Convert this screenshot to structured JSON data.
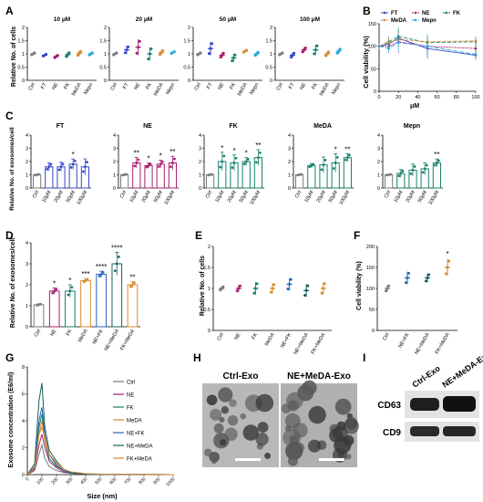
{
  "colors": {
    "ctrl": "#7a7a7a",
    "ft": "#3347c8",
    "ne": "#a51c6e",
    "fk": "#15806b",
    "meda": "#d98a2e",
    "mepn": "#2aa6dd",
    "nefk": "#2566b8",
    "nemeda": "#14605c",
    "fkmeda": "#d98a2e",
    "star": "#000000"
  },
  "panels": {
    "A": "A",
    "B": "B",
    "C": "C",
    "D": "D",
    "E": "E",
    "F": "F",
    "G": "G",
    "H": "H",
    "I": "I"
  },
  "panelA": {
    "ylabel": "Relative No. of cells",
    "categories": [
      "Ctrl",
      "FT",
      "NE",
      "FK",
      "MeDA",
      "Mepn"
    ],
    "subtitles": [
      "10 μM",
      "20 μM",
      "50 μM",
      "100 μM"
    ]
  },
  "panelB": {
    "ylabel": "Cell viability (%)",
    "xlabel": "μM",
    "legend": [
      "FT",
      "NE",
      "FK",
      "MeDA",
      "Mepn"
    ]
  },
  "panelC": {
    "ylabel": "Relative No. of exosomes/cell",
    "titles": [
      "FT",
      "NE",
      "FK",
      "MeDA",
      "Mepn"
    ],
    "categories": [
      "Ctrl",
      "10μM",
      "20μM",
      "50μM",
      "100μM"
    ]
  },
  "panelD": {
    "ylabel": "Relative No. of exosomes/cell",
    "categories": [
      "Ctrl",
      "NE",
      "FK",
      "MeDA",
      "NE+FK",
      "NE+MeDA",
      "FK+MeDA"
    ]
  },
  "panelE": {
    "ylabel": "Relative No. of cells",
    "categories": [
      "Ctrl",
      "NE",
      "FK",
      "MeDA",
      "NE+FK",
      "NE+MeDA",
      "FK+MeDA"
    ]
  },
  "panelF": {
    "ylabel": "Cell viability (%)",
    "categories": [
      "Ctrl",
      "NE+FK",
      "NE+MeDA",
      "FK+MeDA"
    ]
  },
  "panelG": {
    "ylabel": "Exosome concentration (E6/ml)",
    "xlabel": "Size (nm)",
    "legend": [
      "Ctrl",
      "NE",
      "FK",
      "MeDA",
      "NE+FK",
      "NE+MeDA",
      "FK+MeDA"
    ]
  },
  "panelH": {
    "left_label": "Ctrl-Exo",
    "right_label": "NE+MeDA-Exo"
  },
  "panelI": {
    "col_labels": [
      "Ctrl-Exo",
      "NE+MeDA-Exo"
    ],
    "row_labels": [
      "CD63",
      "CD9"
    ]
  },
  "chart_data": [
    {
      "id": "A",
      "type": "scatter",
      "title": "",
      "subplots": [
        {
          "subtitle": "10 μM",
          "categories": [
            "Ctrl",
            "FT",
            "NE",
            "FK",
            "MeDA",
            "Mepn"
          ],
          "means": [
            1.0,
            0.95,
            0.9,
            0.97,
            1.02,
            1.0
          ],
          "sd": [
            0.05,
            0.05,
            0.06,
            0.1,
            0.1,
            0.06
          ],
          "ylim": [
            0,
            2.0
          ],
          "yticks": [
            0,
            0.5,
            1.0,
            1.5,
            2.0
          ]
        },
        {
          "subtitle": "20 μM",
          "categories": [
            "Ctrl",
            "FT",
            "NE",
            "FK",
            "MeDA",
            "Mepn"
          ],
          "means": [
            1.0,
            1.15,
            1.25,
            1.0,
            1.05,
            1.05
          ],
          "sd": [
            0.05,
            0.15,
            0.3,
            0.25,
            0.1,
            0.05
          ],
          "ylim": [
            0,
            2.0
          ],
          "yticks": [
            0,
            0.5,
            1.0,
            1.5,
            2.0
          ]
        },
        {
          "subtitle": "50 μM",
          "categories": [
            "Ctrl",
            "FT",
            "NE",
            "FK",
            "MeDA",
            "Mepn"
          ],
          "means": [
            1.0,
            1.2,
            0.95,
            0.85,
            1.1,
            1.0
          ],
          "sd": [
            0.05,
            0.25,
            0.1,
            0.15,
            0.05,
            0.08
          ],
          "ylim": [
            0,
            2.0
          ],
          "yticks": [
            0,
            0.5,
            1.0,
            1.5,
            2.0
          ]
        },
        {
          "subtitle": "100 μM",
          "categories": [
            "Ctrl",
            "FT",
            "NE",
            "FK",
            "MeDA",
            "Mepn"
          ],
          "means": [
            1.0,
            0.95,
            1.15,
            1.15,
            1.0,
            1.1
          ],
          "sd": [
            0.05,
            0.1,
            0.1,
            0.2,
            0.1,
            0.1
          ],
          "ylim": [
            0,
            2.0
          ],
          "yticks": [
            0,
            0.5,
            1.0,
            1.5,
            2.0
          ]
        }
      ]
    },
    {
      "id": "B",
      "type": "line",
      "xlabel": "μM",
      "ylabel": "Cell viability (%)",
      "x": [
        0,
        10,
        20,
        50,
        100
      ],
      "xlim": [
        0,
        100
      ],
      "ylim": [
        0,
        150
      ],
      "xticks": [
        0,
        20,
        40,
        60,
        80,
        100
      ],
      "yticks": [
        0,
        50,
        100,
        150
      ],
      "legend_position": "top",
      "series": [
        {
          "name": "FT",
          "values": [
            100,
            105,
            118,
            95,
            80
          ],
          "sd": [
            8,
            10,
            20,
            22,
            10
          ]
        },
        {
          "name": "NE",
          "values": [
            100,
            100,
            110,
            100,
            95
          ],
          "sd": [
            6,
            12,
            25,
            20,
            12
          ]
        },
        {
          "name": "FK",
          "values": [
            100,
            110,
            122,
            108,
            110
          ],
          "sd": [
            5,
            12,
            20,
            18,
            12
          ]
        },
        {
          "name": "MeDA",
          "values": [
            100,
            108,
            115,
            110,
            112
          ],
          "sd": [
            6,
            10,
            15,
            15,
            10
          ]
        },
        {
          "name": "Mepn",
          "values": [
            100,
            95,
            108,
            100,
            82
          ],
          "sd": [
            5,
            10,
            20,
            25,
            10
          ]
        }
      ]
    },
    {
      "id": "C",
      "type": "bar",
      "ylabel": "Relative No. of exosomes/cell",
      "subplots": [
        {
          "title": "FT",
          "categories": [
            "Ctrl",
            "10μM",
            "20μM",
            "50μM",
            "100μM"
          ],
          "values": [
            1.0,
            1.6,
            1.6,
            1.8,
            1.6
          ],
          "sd": [
            0.05,
            0.3,
            0.35,
            0.4,
            0.6
          ],
          "sig": [
            "",
            "",
            "",
            "*",
            ""
          ],
          "ylim": [
            0,
            4
          ],
          "yticks": [
            0,
            1,
            2,
            3,
            4
          ]
        },
        {
          "title": "NE",
          "categories": [
            "Ctrl",
            "10μM",
            "20μM",
            "50μM",
            "100μM"
          ],
          "values": [
            1.0,
            1.9,
            1.7,
            1.8,
            1.9
          ],
          "sd": [
            0.05,
            0.4,
            0.2,
            0.3,
            0.5
          ],
          "sig": [
            "",
            "**",
            "*",
            "*",
            "**"
          ],
          "ylim": [
            0,
            4
          ],
          "yticks": [
            0,
            1,
            2,
            3,
            4
          ]
        },
        {
          "title": "FK",
          "categories": [
            "Ctrl",
            "10μM",
            "20μM",
            "50μM",
            "100μM"
          ],
          "values": [
            1.0,
            2.0,
            1.9,
            2.0,
            2.3
          ],
          "sd": [
            0.05,
            0.7,
            0.6,
            0.3,
            0.6
          ],
          "sig": [
            "",
            "*",
            "*",
            "*",
            "**"
          ],
          "ylim": [
            0,
            4
          ],
          "yticks": [
            0,
            1,
            2,
            3,
            4
          ]
        },
        {
          "title": "MeDA",
          "categories": [
            "Ctrl",
            "10μM",
            "20μM",
            "50μM",
            "100μM"
          ],
          "values": [
            1.0,
            1.7,
            1.75,
            1.9,
            2.3
          ],
          "sd": [
            0.05,
            0.15,
            0.6,
            0.7,
            0.3
          ],
          "sig": [
            "",
            "",
            "",
            "*",
            "**"
          ],
          "ylim": [
            0,
            4
          ],
          "yticks": [
            0,
            1,
            2,
            3,
            4
          ]
        },
        {
          "title": "Mepn",
          "categories": [
            "Ctrl",
            "10μM",
            "20μM",
            "50μM",
            "100μM"
          ],
          "values": [
            1.0,
            1.1,
            1.35,
            1.45,
            1.9
          ],
          "sd": [
            0.05,
            0.3,
            0.45,
            0.45,
            0.3
          ],
          "sig": [
            "",
            "",
            "",
            "",
            "**"
          ],
          "ylim": [
            0,
            4
          ],
          "yticks": [
            0,
            1,
            2,
            3,
            4
          ]
        }
      ]
    },
    {
      "id": "D",
      "type": "bar",
      "ylabel": "Relative No. of exosomes/cell",
      "categories": [
        "Ctrl",
        "NE",
        "FK",
        "MeDA",
        "NE+FK",
        "NE+MeDA",
        "FK+MeDA"
      ],
      "values": [
        1.05,
        1.7,
        1.7,
        2.2,
        2.5,
        3.0,
        2.0
      ],
      "sd": [
        0.05,
        0.15,
        0.3,
        0.1,
        0.15,
        0.55,
        0.15
      ],
      "sig": [
        "",
        "*",
        "*",
        "***",
        "****",
        "****",
        "**"
      ],
      "ylim": [
        0,
        4
      ],
      "yticks": [
        0,
        1,
        2,
        3,
        4
      ]
    },
    {
      "id": "E",
      "type": "scatter",
      "ylabel": "Relative No. of cells",
      "categories": [
        "Ctrl",
        "NE",
        "FK",
        "MeDA",
        "NE+FK",
        "NE+MeDA",
        "FK+MeDA"
      ],
      "means": [
        1.0,
        1.0,
        1.0,
        1.0,
        1.1,
        0.95,
        1.0
      ],
      "sd": [
        0.05,
        0.08,
        0.15,
        0.12,
        0.15,
        0.15,
        0.15
      ],
      "ylim": [
        0,
        2.0
      ],
      "yticks": [
        0,
        0.5,
        1.0,
        1.5,
        2.0
      ]
    },
    {
      "id": "F",
      "type": "scatter",
      "ylabel": "Cell viability (%)",
      "categories": [
        "Ctrl",
        "NE+FK",
        "NE+MeDA",
        "FK+MeDA"
      ],
      "means": [
        100,
        125,
        125,
        150
      ],
      "sd": [
        8,
        15,
        10,
        20
      ],
      "sig": [
        "",
        "",
        "",
        "*"
      ],
      "ylim": [
        0,
        200
      ],
      "yticks": [
        0,
        50,
        100,
        150,
        200
      ]
    },
    {
      "id": "G",
      "type": "line",
      "xlabel": "Size (nm)",
      "ylabel": "Exosome concentration (E6/ml)",
      "xlim": [
        0,
        1000
      ],
      "ylim": [
        0,
        8
      ],
      "xticks": [
        0,
        100,
        200,
        300,
        400,
        500,
        600,
        700,
        800,
        900,
        1000
      ],
      "yticks": [
        0,
        2,
        4,
        6,
        8
      ],
      "x": [
        0,
        50,
        80,
        100,
        120,
        150,
        200,
        250,
        300,
        400,
        500,
        1000
      ],
      "series": [
        {
          "name": "Ctrl",
          "values": [
            0,
            0.3,
            1.5,
            2.2,
            1.2,
            0.6,
            0.3,
            0.15,
            0.1,
            0.05,
            0.02,
            0
          ]
        },
        {
          "name": "NE",
          "values": [
            0,
            0.4,
            2.2,
            3.0,
            2.0,
            1.0,
            0.5,
            0.2,
            0.1,
            0.05,
            0.02,
            0
          ]
        },
        {
          "name": "FK",
          "values": [
            0,
            0.5,
            3.5,
            4.5,
            2.5,
            1.2,
            0.6,
            0.3,
            0.1,
            0.05,
            0.02,
            0
          ]
        },
        {
          "name": "MeDA",
          "values": [
            0,
            0.5,
            3.0,
            4.0,
            2.5,
            1.5,
            0.8,
            0.3,
            0.15,
            0.05,
            0.02,
            0
          ]
        },
        {
          "name": "NE+FK",
          "values": [
            0,
            0.6,
            4.0,
            5.0,
            3.0,
            1.5,
            0.7,
            0.3,
            0.1,
            0.05,
            0.02,
            0
          ]
        },
        {
          "name": "NE+MeDA",
          "values": [
            0,
            0.8,
            5.5,
            6.8,
            3.5,
            1.8,
            1.0,
            0.4,
            0.15,
            0.05,
            0.02,
            0
          ]
        },
        {
          "name": "FK+MeDA",
          "values": [
            0,
            0.5,
            3.0,
            3.5,
            2.8,
            1.5,
            0.9,
            0.4,
            0.2,
            0.08,
            0.03,
            0
          ]
        }
      ]
    }
  ]
}
